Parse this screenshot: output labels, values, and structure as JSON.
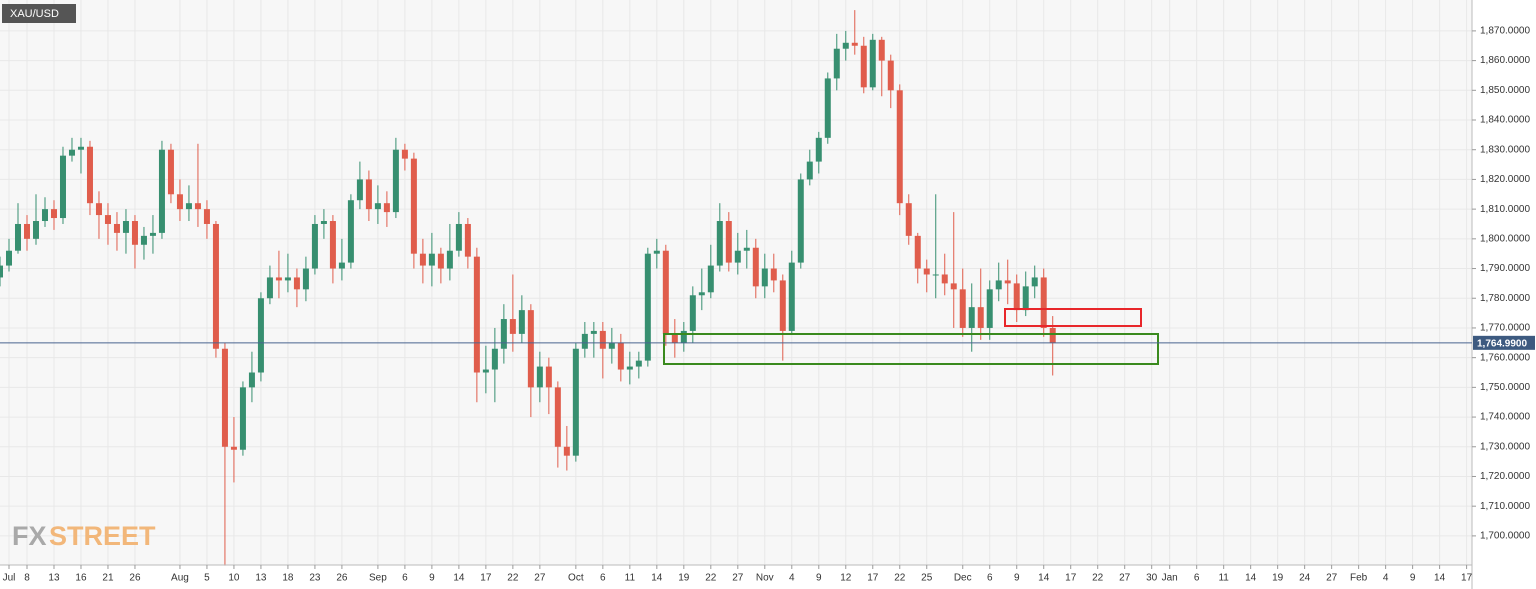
{
  "chart_data": {
    "type": "candlestick",
    "title": "XAU/USD",
    "watermark": [
      "FX",
      "STREET"
    ],
    "up_color": "#378f70",
    "down_color": "#e05d4c",
    "grid": true,
    "current_price": 1764.99,
    "current_price_label": "1,764.9900",
    "xlim": [
      0,
      163.6
    ],
    "ylim": [
      1690.2,
      1880.4
    ],
    "x": [
      0,
      1,
      2,
      3,
      4,
      5,
      6,
      7,
      8,
      9,
      10,
      11,
      12,
      13,
      14,
      15,
      16,
      17,
      18,
      19,
      20,
      21,
      22,
      23,
      24,
      25,
      26,
      27,
      28,
      29,
      30,
      31,
      32,
      33,
      34,
      35,
      36,
      37,
      38,
      39,
      40,
      41,
      42,
      43,
      44,
      45,
      46,
      47,
      48,
      49,
      50,
      51,
      52,
      53,
      54,
      55,
      56,
      57,
      58,
      59,
      60,
      61,
      62,
      63,
      64,
      65,
      66,
      67,
      68,
      69,
      70,
      71,
      72,
      73,
      74,
      75,
      76,
      77,
      78,
      79,
      80,
      81,
      82,
      83,
      84,
      85,
      86,
      87,
      88,
      89,
      90,
      91,
      92,
      93,
      94,
      95,
      96,
      97,
      98,
      99,
      100,
      101,
      102,
      103,
      104,
      105,
      106,
      107,
      108,
      109,
      110,
      111,
      112,
      113,
      114,
      115,
      116,
      117
    ],
    "open": [
      1787,
      1791,
      1796,
      1805,
      1800,
      1806,
      1810,
      1807,
      1828,
      1830,
      1831,
      1812,
      1808,
      1805,
      1802,
      1806,
      1798,
      1801,
      1802,
      1830,
      1815,
      1810,
      1812,
      1810,
      1805,
      1763,
      1730,
      1729,
      1750,
      1755,
      1780,
      1787,
      1786,
      1787,
      1783,
      1790,
      1805,
      1806,
      1790,
      1792,
      1813,
      1820,
      1810,
      1812,
      1809,
      1830,
      1827,
      1795,
      1791,
      1795,
      1790,
      1796,
      1805,
      1794,
      1755,
      1756,
      1763,
      1773,
      1768,
      1776,
      1750,
      1757,
      1750,
      1730,
      1727,
      1763,
      1768,
      1769,
      1763,
      1765,
      1756,
      1757,
      1759,
      1795,
      1796,
      1768,
      1765,
      1769,
      1781,
      1782,
      1791,
      1806,
      1792,
      1796,
      1797,
      1784,
      1790,
      1786,
      1769,
      1792,
      1820,
      1826,
      1834,
      1854,
      1864,
      1866,
      1865,
      1851,
      1867,
      1860,
      1850,
      1812,
      1801,
      1790,
      1788,
      1788,
      1785,
      1783,
      1770,
      1777,
      1770,
      1783,
      1786,
      1785,
      1776,
      1784,
      1787,
      1770
    ],
    "high": [
      1794,
      1800,
      1812,
      1808,
      1815,
      1814,
      1813,
      1831,
      1834,
      1834,
      1833,
      1816,
      1812,
      1809,
      1810,
      1808,
      1804,
      1808,
      1833,
      1832,
      1820,
      1818,
      1832,
      1813,
      1806,
      1765,
      1740,
      1752,
      1762,
      1782,
      1791,
      1796,
      1795,
      1790,
      1794,
      1808,
      1810,
      1808,
      1800,
      1815,
      1826,
      1823,
      1818,
      1816,
      1834,
      1832,
      1829,
      1800,
      1802,
      1797,
      1805,
      1809,
      1807,
      1797,
      1764,
      1770,
      1778,
      1788,
      1781,
      1778,
      1762,
      1760,
      1752,
      1737,
      1765,
      1772,
      1772,
      1772,
      1770,
      1768,
      1762,
      1762,
      1797,
      1800,
      1798,
      1773,
      1772,
      1784,
      1790,
      1798,
      1812,
      1809,
      1802,
      1803,
      1800,
      1795,
      1795,
      1788,
      1796,
      1822,
      1830,
      1836,
      1856,
      1869,
      1870,
      1877,
      1868,
      1869,
      1868,
      1862,
      1852,
      1815,
      1802,
      1793,
      1815,
      1795,
      1809,
      1790,
      1785,
      1790,
      1786,
      1792,
      1793,
      1788,
      1789,
      1791,
      1790,
      1774
    ],
    "low": [
      1784,
      1789,
      1795,
      1796,
      1798,
      1804,
      1803,
      1805,
      1826,
      1822,
      1808,
      1800,
      1798,
      1796,
      1795,
      1790,
      1793,
      1795,
      1800,
      1812,
      1806,
      1806,
      1804,
      1800,
      1760,
      1690,
      1718,
      1727,
      1745,
      1752,
      1778,
      1780,
      1782,
      1777,
      1779,
      1788,
      1800,
      1785,
      1786,
      1790,
      1810,
      1806,
      1805,
      1804,
      1807,
      1823,
      1790,
      1785,
      1784,
      1785,
      1786,
      1794,
      1790,
      1745,
      1748,
      1745,
      1758,
      1762,
      1765,
      1740,
      1745,
      1741,
      1723,
      1722,
      1725,
      1760,
      1760,
      1753,
      1758,
      1752,
      1751,
      1753,
      1757,
      1790,
      1764,
      1760,
      1762,
      1765,
      1776,
      1780,
      1789,
      1789,
      1788,
      1790,
      1780,
      1780,
      1782,
      1759,
      1768,
      1790,
      1818,
      1822,
      1832,
      1850,
      1860,
      1862,
      1849,
      1850,
      1848,
      1844,
      1808,
      1798,
      1785,
      1782,
      1780,
      1781,
      1770,
      1767,
      1762,
      1766,
      1766,
      1779,
      1778,
      1772,
      1774,
      1780,
      1767,
      1754
    ],
    "close": [
      1791,
      1796,
      1805,
      1800,
      1806,
      1810,
      1807,
      1828,
      1830,
      1831,
      1812,
      1808,
      1805,
      1802,
      1806,
      1798,
      1801,
      1802,
      1830,
      1815,
      1810,
      1812,
      1810,
      1805,
      1763,
      1730,
      1729,
      1750,
      1755,
      1780,
      1787,
      1786,
      1787,
      1783,
      1790,
      1805,
      1806,
      1790,
      1792,
      1813,
      1820,
      1810,
      1812,
      1809,
      1830,
      1827,
      1795,
      1791,
      1795,
      1790,
      1796,
      1805,
      1794,
      1755,
      1756,
      1763,
      1773,
      1768,
      1776,
      1750,
      1757,
      1750,
      1730,
      1727,
      1763,
      1768,
      1769,
      1763,
      1765,
      1756,
      1757,
      1759,
      1795,
      1796,
      1768,
      1765,
      1769,
      1781,
      1782,
      1791,
      1806,
      1792,
      1796,
      1797,
      1784,
      1790,
      1786,
      1769,
      1792,
      1820,
      1826,
      1834,
      1854,
      1864,
      1866,
      1865,
      1851,
      1867,
      1860,
      1850,
      1812,
      1801,
      1790,
      1788,
      1788,
      1785,
      1783,
      1770,
      1777,
      1770,
      1783,
      1786,
      1785,
      1776,
      1784,
      1787,
      1770,
      1765
    ],
    "yticks": [
      {
        "value": 1700,
        "label": "1,700.0000"
      },
      {
        "value": 1710,
        "label": "1,710.0000"
      },
      {
        "value": 1720,
        "label": "1,720.0000"
      },
      {
        "value": 1730,
        "label": "1,730.0000"
      },
      {
        "value": 1740,
        "label": "1,740.0000"
      },
      {
        "value": 1750,
        "label": "1,750.0000"
      },
      {
        "value": 1760,
        "label": "1,760.0000"
      },
      {
        "value": 1770,
        "label": "1,770.0000"
      },
      {
        "value": 1780,
        "label": "1,780.0000"
      },
      {
        "value": 1790,
        "label": "1,790.0000"
      },
      {
        "value": 1800,
        "label": "1,800.0000"
      },
      {
        "value": 1810,
        "label": "1,810.0000"
      },
      {
        "value": 1820,
        "label": "1,820.0000"
      },
      {
        "value": 1830,
        "label": "1,830.0000"
      },
      {
        "value": 1840,
        "label": "1,840.0000"
      },
      {
        "value": 1850,
        "label": "1,850.0000"
      },
      {
        "value": 1860,
        "label": "1,860.0000"
      },
      {
        "value": 1870,
        "label": "1,870.0000"
      }
    ],
    "xticks": [
      {
        "value": 1,
        "label": "Jul"
      },
      {
        "value": 3,
        "label": "8"
      },
      {
        "value": 6,
        "label": "13"
      },
      {
        "value": 9,
        "label": "16"
      },
      {
        "value": 12,
        "label": "21"
      },
      {
        "value": 15,
        "label": "26"
      },
      {
        "value": 20,
        "label": "Aug"
      },
      {
        "value": 23,
        "label": "5"
      },
      {
        "value": 26,
        "label": "10"
      },
      {
        "value": 29,
        "label": "13"
      },
      {
        "value": 32,
        "label": "18"
      },
      {
        "value": 35,
        "label": "23"
      },
      {
        "value": 38,
        "label": "26"
      },
      {
        "value": 42,
        "label": "Sep"
      },
      {
        "value": 45,
        "label": "6"
      },
      {
        "value": 48,
        "label": "9"
      },
      {
        "value": 51,
        "label": "14"
      },
      {
        "value": 54,
        "label": "17"
      },
      {
        "value": 57,
        "label": "22"
      },
      {
        "value": 60,
        "label": "27"
      },
      {
        "value": 64,
        "label": "Oct"
      },
      {
        "value": 67,
        "label": "6"
      },
      {
        "value": 70,
        "label": "11"
      },
      {
        "value": 73,
        "label": "14"
      },
      {
        "value": 76,
        "label": "19"
      },
      {
        "value": 79,
        "label": "22"
      },
      {
        "value": 82,
        "label": "27"
      },
      {
        "value": 85,
        "label": "Nov"
      },
      {
        "value": 88,
        "label": "4"
      },
      {
        "value": 91,
        "label": "9"
      },
      {
        "value": 94,
        "label": "12"
      },
      {
        "value": 97,
        "label": "17"
      },
      {
        "value": 100,
        "label": "22"
      },
      {
        "value": 103,
        "label": "25"
      },
      {
        "value": 107,
        "label": "Dec"
      },
      {
        "value": 110,
        "label": "6"
      },
      {
        "value": 113,
        "label": "9"
      },
      {
        "value": 116,
        "label": "14"
      },
      {
        "value": 119,
        "label": "17"
      },
      {
        "value": 122,
        "label": "22"
      },
      {
        "value": 125,
        "label": "27"
      },
      {
        "value": 128,
        "label": "30"
      },
      {
        "value": 130,
        "label": "Jan"
      },
      {
        "value": 133,
        "label": "6"
      },
      {
        "value": 136,
        "label": "11"
      },
      {
        "value": 139,
        "label": "14"
      },
      {
        "value": 142,
        "label": "19"
      },
      {
        "value": 145,
        "label": "24"
      },
      {
        "value": 148,
        "label": "27"
      },
      {
        "value": 151,
        "label": "Feb"
      },
      {
        "value": 154,
        "label": "4"
      },
      {
        "value": 157,
        "label": "9"
      },
      {
        "value": 160,
        "label": "14"
      },
      {
        "value": 163,
        "label": "17"
      }
    ]
  }
}
